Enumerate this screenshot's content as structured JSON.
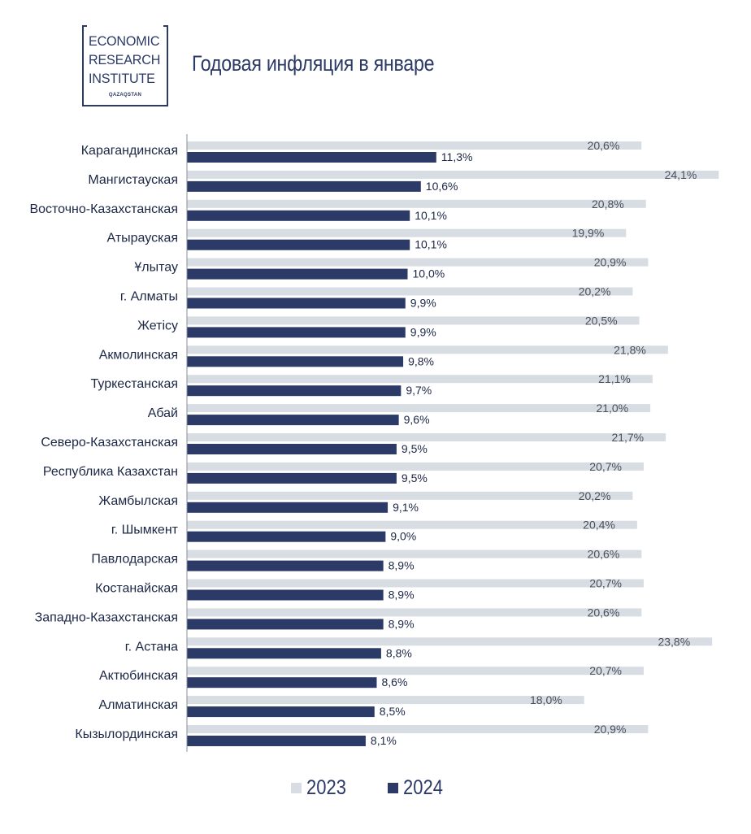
{
  "logo": {
    "line1": "ECONOMIC",
    "line2": "RESEARCH",
    "line3": "INSTITUTE",
    "sub": "QAZAQSTAN"
  },
  "colors": {
    "series_2023": "#d8dce3",
    "series_2024": "#2b3a67",
    "axis": "#8a8f99",
    "label_2023": "#4a4f5a",
    "label_2024": "#1c2746"
  },
  "chart_data": {
    "type": "bar",
    "orientation": "horizontal",
    "title": "Годовая инфляция в январе",
    "value_format": "percent, comma decimal",
    "categories": [
      "Карагандинская",
      "Мангистауская",
      "Восточно-Казахстанская",
      "Атырауская",
      "Ұлытау",
      "г. Алматы",
      "Жетісу",
      "Акмолинская",
      "Туркестанская",
      "Абай",
      "Северо-Казахстанская",
      "Республика Казахстан",
      "Жамбылская",
      "г. Шымкент",
      "Павлодарская",
      "Костанайская",
      "Западно-Казахстанская",
      "г. Астана",
      "Актюбинская",
      "Алматинская",
      "Кызылординская"
    ],
    "series": [
      {
        "name": "2023",
        "values": [
          20.6,
          24.1,
          20.8,
          19.9,
          20.9,
          20.2,
          20.5,
          21.8,
          21.1,
          21.0,
          21.7,
          20.7,
          20.2,
          20.4,
          20.6,
          20.7,
          20.6,
          23.8,
          20.7,
          18.0,
          20.9
        ]
      },
      {
        "name": "2024",
        "values": [
          11.3,
          10.6,
          10.1,
          10.1,
          10.0,
          9.9,
          9.9,
          9.8,
          9.7,
          9.6,
          9.5,
          9.5,
          9.1,
          9.0,
          8.9,
          8.9,
          8.9,
          8.8,
          8.6,
          8.5,
          8.1
        ]
      }
    ],
    "xlim": [
      0,
      24.1
    ],
    "grid": false,
    "legend": "bottom"
  }
}
